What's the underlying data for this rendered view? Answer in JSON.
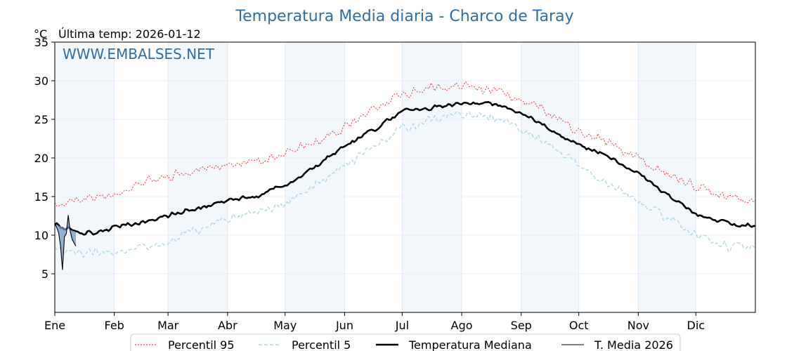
{
  "chart_data": {
    "type": "line",
    "title": "Temperatura Media diaria - Charco de Taray",
    "subtitle": "Última temp: 2026-01-12",
    "unit": "°C",
    "watermark": "WWW.EMBALSES.NET",
    "ylim": [
      0,
      35
    ],
    "yticks": [
      5,
      10,
      15,
      20,
      25,
      30,
      35
    ],
    "x_range_days": [
      0,
      365
    ],
    "months": [
      {
        "label": "Ene",
        "start_day": 0
      },
      {
        "label": "Feb",
        "start_day": 31
      },
      {
        "label": "Mar",
        "start_day": 59
      },
      {
        "label": "Abr",
        "start_day": 90
      },
      {
        "label": "May",
        "start_day": 120
      },
      {
        "label": "Jun",
        "start_day": 151
      },
      {
        "label": "Jul",
        "start_day": 181
      },
      {
        "label": "Ago",
        "start_day": 212
      },
      {
        "label": "Sep",
        "start_day": 243
      },
      {
        "label": "Oct",
        "start_day": 273
      },
      {
        "label": "Nov",
        "start_day": 304
      },
      {
        "label": "Dic",
        "start_day": 334
      }
    ],
    "shaded_months": [
      "Ene",
      "Mar",
      "May",
      "Jul",
      "Sep",
      "Nov"
    ],
    "grid": true,
    "legend_position": "bottom",
    "series": [
      {
        "name": "Percentil 95",
        "color": "#e8201f",
        "style": "dotted",
        "points": [
          [
            0,
            14.2
          ],
          [
            15,
            14.5
          ],
          [
            31,
            15.3
          ],
          [
            45,
            16.8
          ],
          [
            59,
            17.5
          ],
          [
            75,
            18.5
          ],
          [
            90,
            19.0
          ],
          [
            105,
            19.6
          ],
          [
            120,
            20.6
          ],
          [
            135,
            22.0
          ],
          [
            151,
            24.0
          ],
          [
            165,
            26.0
          ],
          [
            181,
            28.3
          ],
          [
            195,
            29.0
          ],
          [
            212,
            29.3
          ],
          [
            228,
            28.8
          ],
          [
            243,
            27.6
          ],
          [
            258,
            25.6
          ],
          [
            273,
            23.5
          ],
          [
            288,
            22.0
          ],
          [
            304,
            20.0
          ],
          [
            318,
            18.0
          ],
          [
            334,
            16.5
          ],
          [
            350,
            15.0
          ],
          [
            365,
            14.6
          ]
        ]
      },
      {
        "name": "Percentil 5",
        "color": "#add8e6",
        "style": "dashed",
        "points": [
          [
            0,
            8.0
          ],
          [
            15,
            7.6
          ],
          [
            31,
            7.8
          ],
          [
            45,
            8.5
          ],
          [
            59,
            9.2
          ],
          [
            75,
            10.8
          ],
          [
            90,
            12.2
          ],
          [
            105,
            13.0
          ],
          [
            120,
            14.0
          ],
          [
            135,
            16.3
          ],
          [
            151,
            19.0
          ],
          [
            165,
            21.2
          ],
          [
            181,
            23.8
          ],
          [
            195,
            25.0
          ],
          [
            212,
            25.6
          ],
          [
            228,
            25.3
          ],
          [
            243,
            23.8
          ],
          [
            258,
            21.8
          ],
          [
            273,
            19.2
          ],
          [
            288,
            16.5
          ],
          [
            304,
            14.5
          ],
          [
            318,
            12.5
          ],
          [
            334,
            10.0
          ],
          [
            350,
            8.5
          ],
          [
            365,
            8.4
          ]
        ]
      },
      {
        "name": "Temperatura Mediana",
        "color": "#000000",
        "style": "thick",
        "points": [
          [
            0,
            11.4
          ],
          [
            15,
            10.1
          ],
          [
            31,
            11.0
          ],
          [
            45,
            11.7
          ],
          [
            59,
            12.5
          ],
          [
            75,
            13.5
          ],
          [
            90,
            14.5
          ],
          [
            105,
            15.0
          ],
          [
            120,
            16.5
          ],
          [
            135,
            18.8
          ],
          [
            151,
            21.5
          ],
          [
            165,
            23.5
          ],
          [
            181,
            26.0
          ],
          [
            195,
            26.5
          ],
          [
            212,
            27.0
          ],
          [
            228,
            27.1
          ],
          [
            243,
            26.0
          ],
          [
            258,
            23.8
          ],
          [
            273,
            21.7
          ],
          [
            288,
            20.2
          ],
          [
            304,
            18.0
          ],
          [
            318,
            15.5
          ],
          [
            334,
            12.8
          ],
          [
            350,
            11.5
          ],
          [
            365,
            11.2
          ]
        ]
      },
      {
        "name": "T. Media 2026",
        "color": "#000000",
        "style": "thin",
        "points": [
          [
            0,
            11.6
          ],
          [
            1,
            11.0
          ],
          [
            2,
            10.3
          ],
          [
            3,
            8.6
          ],
          [
            4,
            5.5
          ],
          [
            5,
            9.8
          ],
          [
            6,
            10.2
          ],
          [
            7,
            12.6
          ],
          [
            8,
            10.5
          ],
          [
            9,
            9.5
          ],
          [
            10,
            9.0
          ],
          [
            11,
            8.6
          ]
        ]
      }
    ]
  }
}
